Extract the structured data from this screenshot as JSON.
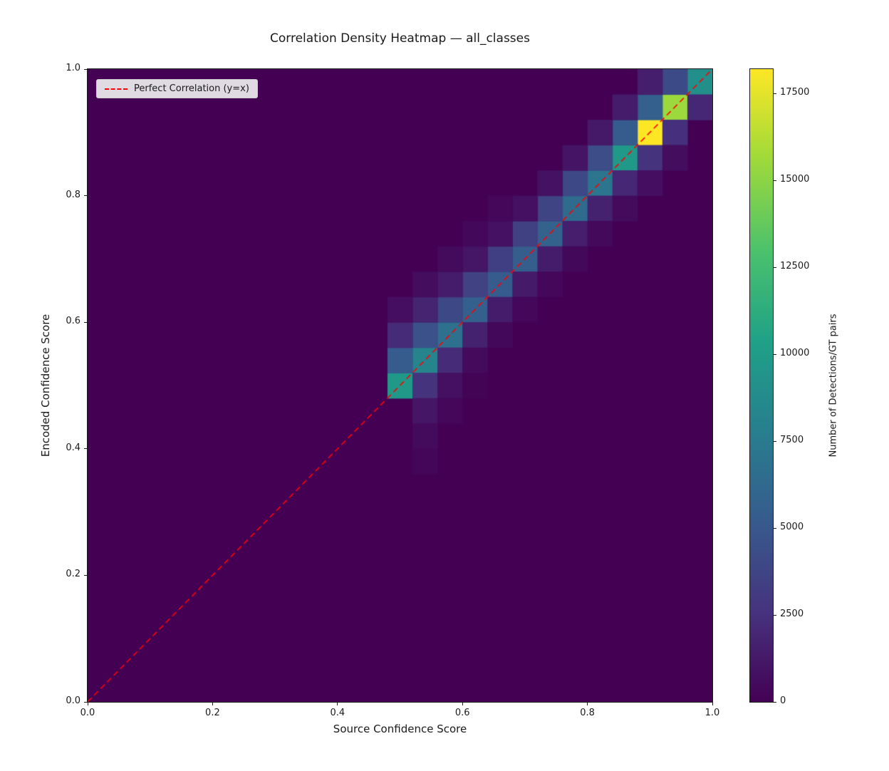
{
  "chart_data": {
    "type": "heatmap",
    "title": "Correlation Density Heatmap — all_classes",
    "xlabel": "Source Confidence Score",
    "ylabel": "Encoded Confidence Score",
    "colorbar_label": "Number of Detections/GT pairs",
    "x_range": [
      0.0,
      1.0
    ],
    "y_range": [
      0.0,
      1.0
    ],
    "bins": 25,
    "x_ticks": [
      0.0,
      0.2,
      0.4,
      0.6,
      0.8,
      1.0
    ],
    "x_tick_labels": [
      "0.0",
      "0.2",
      "0.4",
      "0.6",
      "0.8",
      "1.0"
    ],
    "y_ticks": [
      0.0,
      0.2,
      0.4,
      0.6,
      0.8,
      1.0
    ],
    "y_tick_labels": [
      "0.0",
      "0.2",
      "0.4",
      "0.6",
      "0.8",
      "1.0"
    ],
    "colorbar_ticks": [
      0,
      2500,
      5000,
      7500,
      10000,
      12500,
      15000,
      17500
    ],
    "colorbar_tick_labels": [
      "0",
      "2500",
      "5000",
      "7500",
      "10000",
      "12500",
      "15000",
      "17500"
    ],
    "vmax": 18200,
    "vmin": 0,
    "legend": {
      "label": "Perfect Correlation (y=x)",
      "color": "#ff0000",
      "style": "dashed"
    },
    "colormap": "viridis",
    "colormap_stops": [
      [
        0.0,
        "#440154"
      ],
      [
        0.14,
        "#46327e"
      ],
      [
        0.29,
        "#365c8d"
      ],
      [
        0.43,
        "#277f8e"
      ],
      [
        0.57,
        "#1fa187"
      ],
      [
        0.71,
        "#4ac16d"
      ],
      [
        0.86,
        "#a0da39"
      ],
      [
        1.0,
        "#fde725"
      ]
    ],
    "cells": [
      [
        12,
        12,
        9800
      ],
      [
        13,
        13,
        8200
      ],
      [
        14,
        14,
        6800
      ],
      [
        15,
        15,
        5600
      ],
      [
        16,
        16,
        5200
      ],
      [
        17,
        17,
        5400
      ],
      [
        18,
        18,
        5800
      ],
      [
        19,
        19,
        6400
      ],
      [
        20,
        20,
        7200
      ],
      [
        21,
        21,
        9800
      ],
      [
        22,
        22,
        18200
      ],
      [
        23,
        23,
        15500
      ],
      [
        24,
        24,
        9000
      ],
      [
        12,
        13,
        5200
      ],
      [
        13,
        14,
        4600
      ],
      [
        14,
        15,
        4000
      ],
      [
        15,
        16,
        3600
      ],
      [
        16,
        17,
        3400
      ],
      [
        17,
        18,
        3500
      ],
      [
        18,
        19,
        3700
      ],
      [
        19,
        20,
        4000
      ],
      [
        20,
        21,
        4300
      ],
      [
        21,
        22,
        5200
      ],
      [
        22,
        23,
        5600
      ],
      [
        23,
        24,
        4200
      ],
      [
        12,
        14,
        2200
      ],
      [
        13,
        15,
        1800
      ],
      [
        14,
        16,
        1400
      ],
      [
        15,
        17,
        1100
      ],
      [
        16,
        18,
        900
      ],
      [
        17,
        19,
        800
      ],
      [
        18,
        20,
        900
      ],
      [
        19,
        21,
        1000
      ],
      [
        20,
        22,
        1200
      ],
      [
        21,
        23,
        1400
      ],
      [
        22,
        24,
        1500
      ],
      [
        12,
        15,
        700
      ],
      [
        13,
        16,
        600
      ],
      [
        14,
        17,
        450
      ],
      [
        15,
        18,
        350
      ],
      [
        16,
        19,
        300
      ],
      [
        13,
        12,
        2600
      ],
      [
        14,
        13,
        2200
      ],
      [
        15,
        14,
        1700
      ],
      [
        16,
        15,
        1400
      ],
      [
        17,
        16,
        1300
      ],
      [
        18,
        17,
        1400
      ],
      [
        19,
        18,
        1500
      ],
      [
        20,
        19,
        1700
      ],
      [
        21,
        20,
        2000
      ],
      [
        22,
        21,
        2600
      ],
      [
        23,
        22,
        2400
      ],
      [
        24,
        23,
        2000
      ],
      [
        13,
        11,
        1100
      ],
      [
        14,
        12,
        800
      ],
      [
        15,
        13,
        500
      ],
      [
        16,
        14,
        350
      ],
      [
        17,
        15,
        300
      ],
      [
        18,
        16,
        320
      ],
      [
        19,
        17,
        350
      ],
      [
        20,
        18,
        400
      ],
      [
        21,
        19,
        500
      ],
      [
        22,
        20,
        700
      ],
      [
        23,
        21,
        600
      ],
      [
        13,
        10,
        500
      ],
      [
        14,
        11,
        300
      ],
      [
        15,
        12,
        150
      ],
      [
        13,
        9,
        250
      ]
    ]
  }
}
